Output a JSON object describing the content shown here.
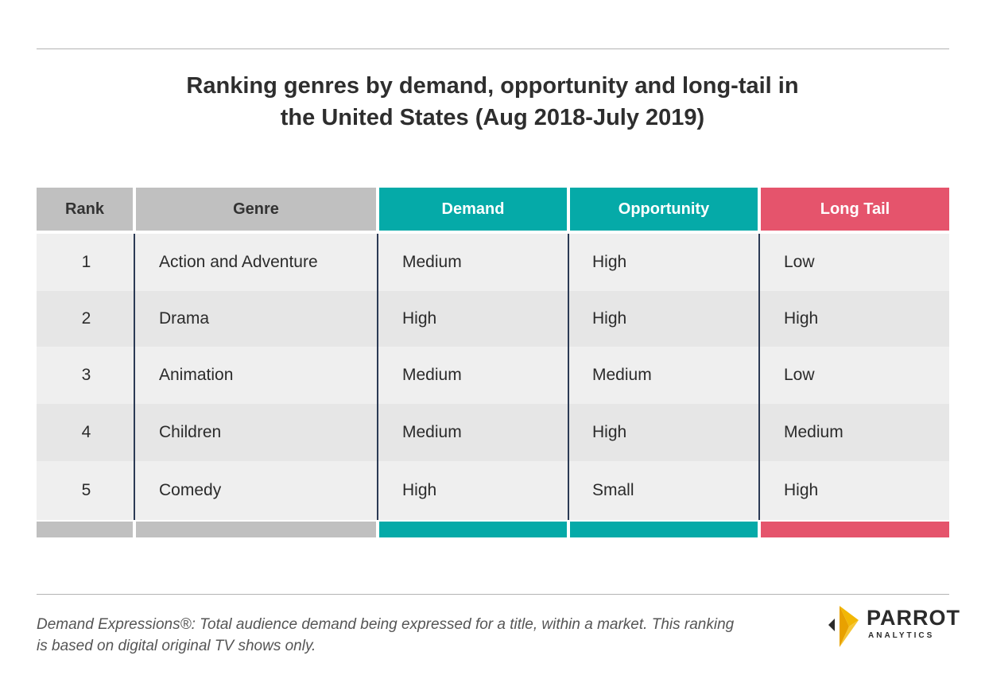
{
  "title": {
    "line1": "Ranking genres by demand, opportunity and long-tail in",
    "line2": "the United States (Aug 2018-July 2019)"
  },
  "table": {
    "headers": [
      "Rank",
      "Genre",
      "Demand",
      "Opportunity",
      "Long Tail"
    ],
    "rows": [
      {
        "rank": "1",
        "genre": "Action and Adventure",
        "demand": "Medium",
        "opportunity": "High",
        "long_tail": "Low"
      },
      {
        "rank": "2",
        "genre": "Drama",
        "demand": "High",
        "opportunity": "High",
        "long_tail": "High"
      },
      {
        "rank": "3",
        "genre": "Animation",
        "demand": "Medium",
        "opportunity": "Medium",
        "long_tail": "Low"
      },
      {
        "rank": "4",
        "genre": "Children",
        "demand": "Medium",
        "opportunity": "High",
        "long_tail": "Medium"
      },
      {
        "rank": "5",
        "genre": "Comedy",
        "demand": "High",
        "opportunity": "Small",
        "long_tail": "High"
      }
    ]
  },
  "colors": {
    "header_gray": "#c0c0c0",
    "teal": "#05aaa8",
    "pink": "#e5546c",
    "logo_gold": "#f2b705"
  },
  "footer": {
    "line1": "Demand Expressions®:  Total audience demand being expressed for a title, within a market. This ranking",
    "line2": "is based on digital original TV shows only."
  },
  "logo": {
    "name": "PARROT",
    "sub": "ANALYTICS"
  }
}
